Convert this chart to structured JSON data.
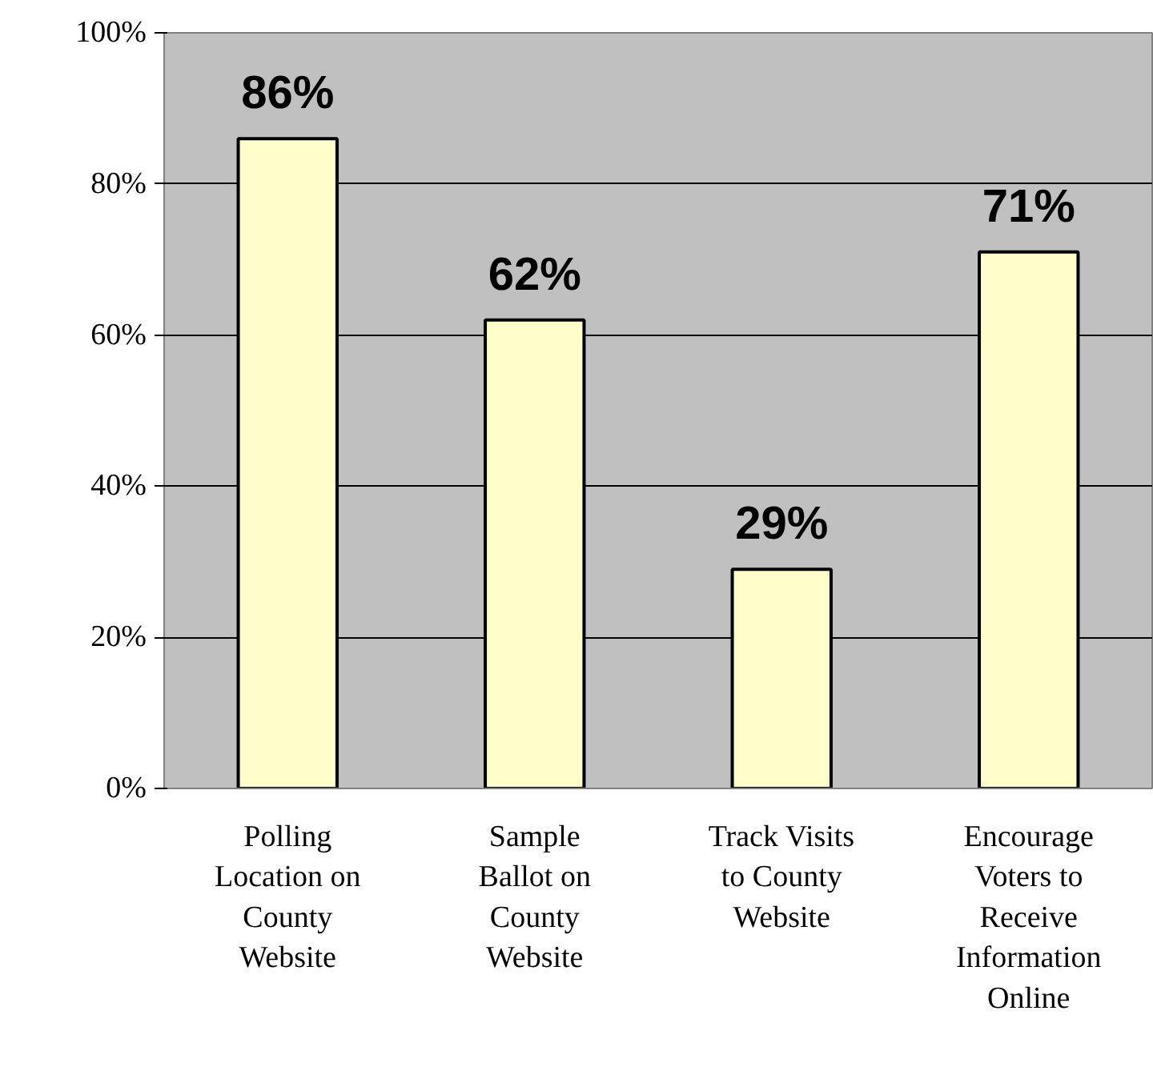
{
  "chart_data": {
    "type": "bar",
    "categories": [
      "Polling Location on County Website",
      "Sample Ballot on County Website",
      "Track Visits to County Website",
      "Encourage Voters to Receive Information Online"
    ],
    "values": [
      86,
      62,
      29,
      71
    ],
    "value_labels": [
      "86%",
      "62%",
      "29%",
      "71%"
    ],
    "color": "#ffffcc",
    "ylim": [
      0,
      100
    ],
    "yticks": [
      {
        "value": 0,
        "label": "0%"
      },
      {
        "value": 20,
        "label": "20%"
      },
      {
        "value": 40,
        "label": "40%"
      },
      {
        "value": 60,
        "label": "60%"
      },
      {
        "value": 80,
        "label": "80%"
      },
      {
        "value": 100,
        "label": "100%"
      }
    ],
    "grid": "y"
  }
}
